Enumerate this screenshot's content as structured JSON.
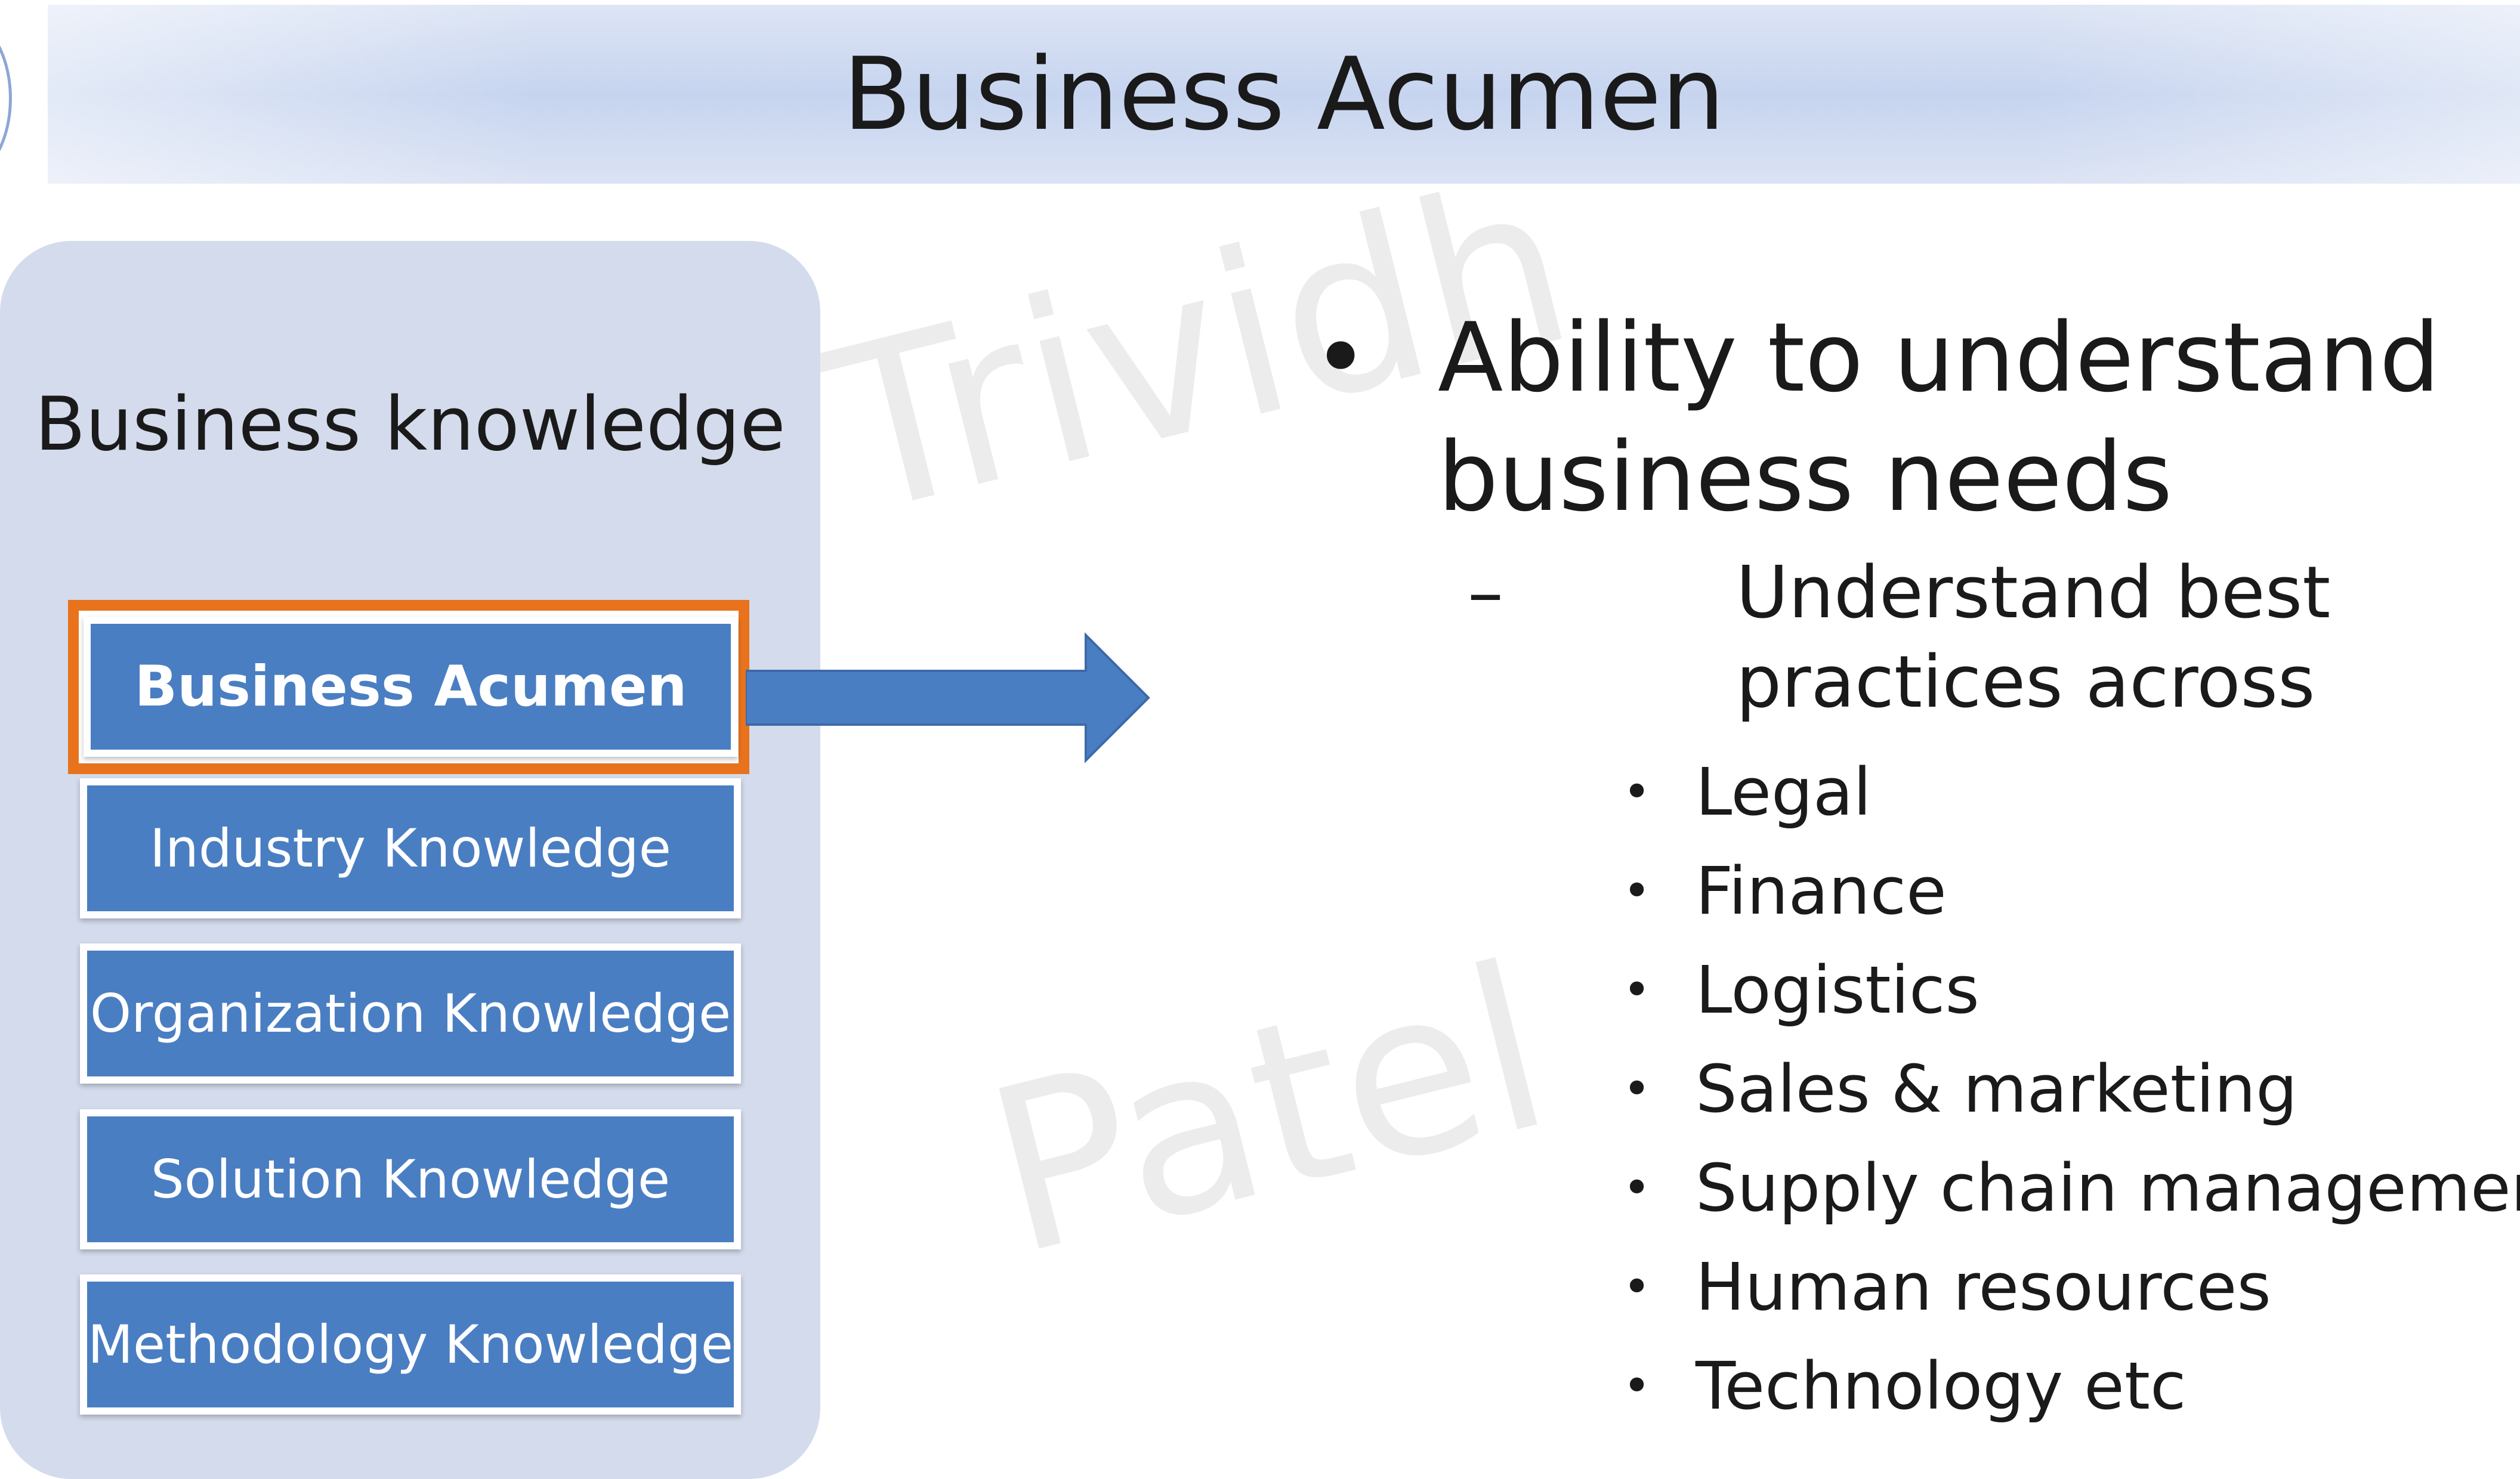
{
  "title": "Business Acumen",
  "watermark": {
    "line1": "Trividh",
    "line2": "Patel"
  },
  "left_panel": {
    "label": "Business knowledge",
    "boxes": [
      {
        "label": "Business Acumen",
        "selected": true
      },
      {
        "label": "Industry Knowledge",
        "selected": false
      },
      {
        "label": "Organization Knowledge",
        "selected": false
      },
      {
        "label": "Solution Knowledge",
        "selected": false
      },
      {
        "label": "Methodology Knowledge",
        "selected": false
      }
    ]
  },
  "content": {
    "bullet": "•",
    "dash": "–",
    "sub_bullet": "•",
    "main_point": "Ability to understand business needs",
    "sub_point": "Understand best practices across",
    "areas": [
      "Legal",
      "Finance",
      "Logistics",
      "Sales & marketing",
      "Supply chain management",
      "Human resources",
      "Technology etc"
    ]
  },
  "colors": {
    "box_fill": "#4a7ec2",
    "highlight_border": "#e8731c",
    "panel_fill": "#d3dbec",
    "arrow_fill": "#4a7ec2"
  }
}
